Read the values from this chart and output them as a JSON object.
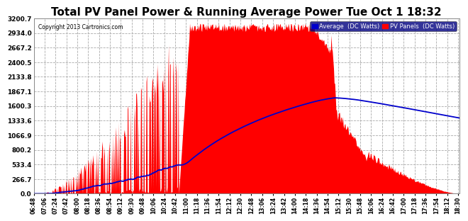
{
  "title": "Total PV Panel Power & Running Average Power Tue Oct 1 18:32",
  "copyright": "Copyright 2013 Cartronics.com",
  "legend_avg": "Average  (DC Watts)",
  "legend_pv": "PV Panels  (DC Watts)",
  "ymin": 0.0,
  "ymax": 3200.7,
  "yticks": [
    0.0,
    266.7,
    533.4,
    800.2,
    1066.9,
    1333.6,
    1600.3,
    1867.1,
    2133.8,
    2400.5,
    2667.2,
    2934.0,
    3200.7
  ],
  "background_color": "#ffffff",
  "plot_bg_color": "#ffffff",
  "bar_color": "#ff0000",
  "avg_line_color": "#0000cc",
  "title_fontsize": 11,
  "legend_bg": "#000080"
}
